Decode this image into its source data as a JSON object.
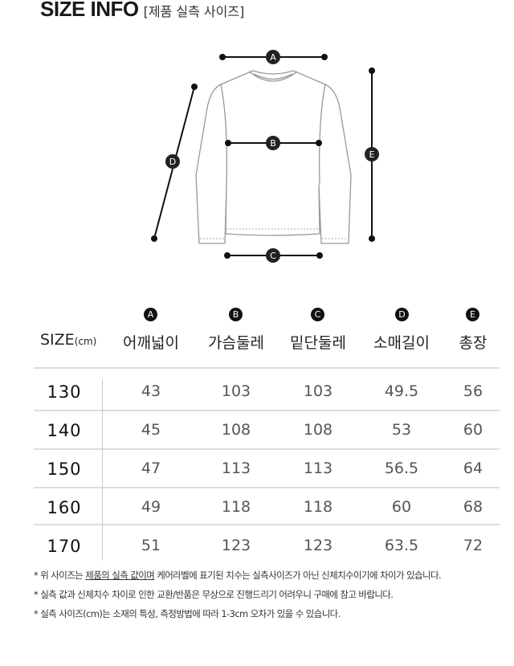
{
  "header": {
    "title": "SIZE INFO",
    "subtitle": "[제품 실측 사이즈]"
  },
  "diagram": {
    "labels": {
      "a": "A",
      "b": "B",
      "c": "C",
      "d": "D",
      "e": "E"
    }
  },
  "table": {
    "size_header": "SIZE",
    "unit": "(cm)",
    "columns": [
      {
        "marker": "A",
        "label": "어깨넓이"
      },
      {
        "marker": "B",
        "label": "가슴둘레"
      },
      {
        "marker": "C",
        "label": "밑단둘레"
      },
      {
        "marker": "D",
        "label": "소매길이"
      },
      {
        "marker": "E",
        "label": "총장"
      }
    ],
    "rows": [
      {
        "size": "130",
        "values": [
          "43",
          "103",
          "103",
          "49.5",
          "56"
        ]
      },
      {
        "size": "140",
        "values": [
          "45",
          "108",
          "108",
          "53",
          "60"
        ]
      },
      {
        "size": "150",
        "values": [
          "47",
          "113",
          "113",
          "56.5",
          "64"
        ]
      },
      {
        "size": "160",
        "values": [
          "49",
          "118",
          "118",
          "60",
          "68"
        ]
      },
      {
        "size": "170",
        "values": [
          "51",
          "123",
          "123",
          "63.5",
          "72"
        ]
      }
    ]
  },
  "notes": {
    "n1_pre": "* 위 사이즈는 ",
    "n1_u": "제품의 실측 값이며",
    "n1_post": " 케어라벨에 표기된 치수는 실측사이즈가 아닌 신체치수이기에 차이가 있습니다.",
    "n2": "* 실측 값과 신체치수 차이로 인한 교환/반품은 무상으로 진행드리기 어려우니 구매에 참고 바랍니다.",
    "n3": "* 실측 사이즈(cm)는 소재의 특성, 측정방법에 따라 1-3cm 오차가 있을 수 있습니다."
  }
}
